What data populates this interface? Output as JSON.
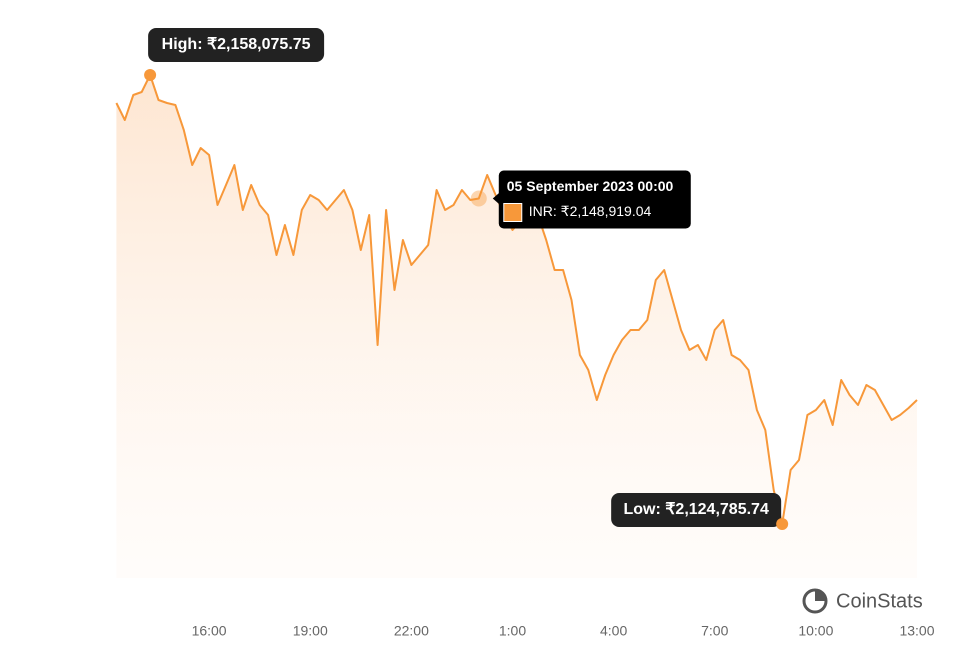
{
  "chart_data": {
    "type": "line",
    "categories": [
      "13:15",
      "13:30",
      "13:45",
      "14:00",
      "14:15",
      "14:30",
      "14:45",
      "15:00",
      "15:15",
      "15:30",
      "15:45",
      "16:00",
      "16:15",
      "16:30",
      "16:45",
      "17:00",
      "17:15",
      "17:30",
      "17:45",
      "18:00",
      "18:15",
      "18:30",
      "18:45",
      "19:00",
      "19:15",
      "19:30",
      "19:45",
      "20:00",
      "20:15",
      "20:30",
      "20:45",
      "21:00",
      "21:15",
      "21:30",
      "21:45",
      "22:00",
      "22:15",
      "22:30",
      "22:45",
      "23:00",
      "23:15",
      "23:30",
      "23:45",
      "00:00",
      "00:15",
      "00:30",
      "00:45",
      "1:00",
      "1:15",
      "1:30",
      "1:45",
      "2:00",
      "2:15",
      "2:30",
      "2:45",
      "3:00",
      "3:15",
      "3:30",
      "3:45",
      "4:00",
      "4:15",
      "4:30",
      "4:45",
      "5:00",
      "5:15",
      "5:30",
      "5:45",
      "6:00",
      "6:15",
      "6:30",
      "6:45",
      "7:00",
      "7:15",
      "7:30",
      "7:45",
      "8:00",
      "8:15",
      "8:30",
      "8:45",
      "9:00",
      "9:15",
      "9:30",
      "9:45",
      "10:00",
      "10:15",
      "10:30",
      "10:45",
      "11:00",
      "11:15",
      "11:30",
      "11:45",
      "12:00",
      "12:15",
      "12:30",
      "12:45",
      "13:00"
    ],
    "values": [
      2156000,
      2154740,
      2156593,
      2156815,
      2158075.75,
      2156222,
      2156000,
      2155852,
      2153998,
      2151403,
      2152664,
      2152145,
      2148438,
      2149921,
      2151403,
      2148067,
      2149921,
      2148438,
      2147696,
      2144731,
      2146955,
      2144731,
      2148067,
      2149179,
      2148808,
      2148067,
      2148808,
      2149550,
      2148067,
      2145101,
      2147696,
      2138058,
      2148067,
      2142136,
      2145843,
      2143989,
      2144731,
      2145472,
      2149550,
      2148067,
      2148438,
      2149550,
      2148808,
      2148919.04,
      2150662,
      2149179,
      2147696,
      2146584,
      2147326,
      2148438,
      2147696,
      2145843,
      2143619,
      2143619,
      2141394,
      2137317,
      2136205,
      2133980,
      2135834,
      2137317,
      2138429,
      2139170,
      2139170,
      2139912,
      2142877,
      2143619,
      2141394,
      2139170,
      2137687,
      2138058,
      2136946,
      2139170,
      2139912,
      2137317,
      2136946,
      2136205,
      2133239,
      2131756,
      2127308,
      2124785.74,
      2128791,
      2129532,
      2132868,
      2133239,
      2133980,
      2132127,
      2135463,
      2134351,
      2133610,
      2135093,
      2134722,
      2133610,
      2132498,
      2132868,
      2133387,
      2133980
    ],
    "color": "#f7983a",
    "xticks": [
      "16:00",
      "19:00",
      "22:00",
      "1:00",
      "4:00",
      "7:00",
      "10:00",
      "13:00"
    ],
    "high_label": "High: ₹2,158,075.75",
    "low_label": "Low: ₹2,124,785.74",
    "tooltip": {
      "title": "05 September 2023 00:00",
      "text": "INR: ₹2,148,919.04"
    },
    "watermark": "CoinStats"
  }
}
